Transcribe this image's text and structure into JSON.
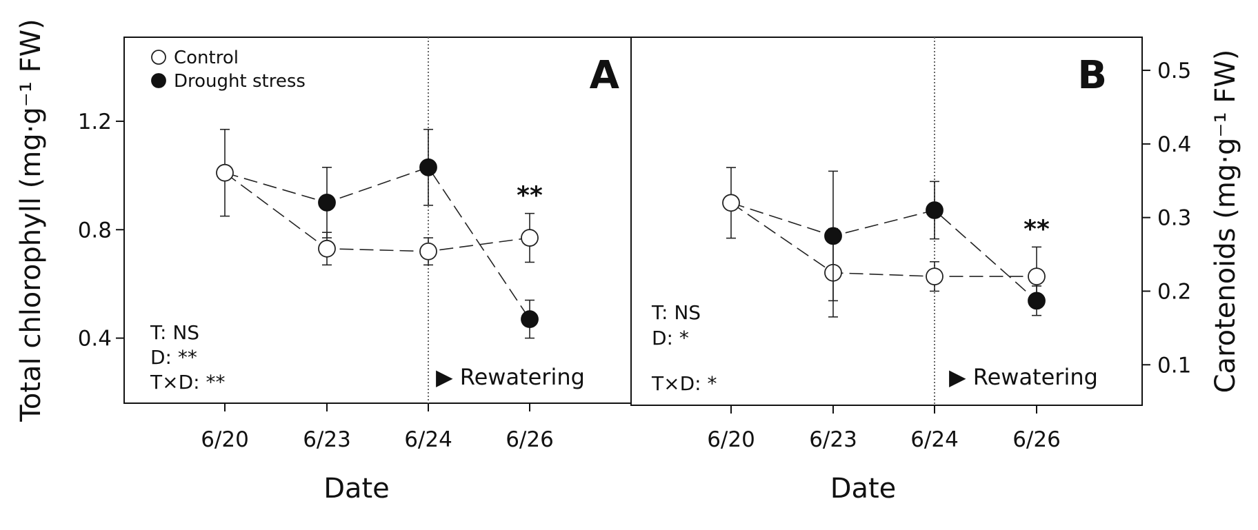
{
  "colors": {
    "axis": "#111111",
    "control_fill": "#ffffff",
    "drought_fill": "#111111",
    "line": "#222222"
  },
  "legend": [
    {
      "label": "Control",
      "marker": "open-circle"
    },
    {
      "label": "Drought stress",
      "marker": "filled-circle"
    }
  ],
  "rewatering_label": "▶ Rewatering",
  "chart_data": [
    {
      "panel": "A",
      "type": "line",
      "ylabel": "Total chlorophyll (mg·g⁻¹ FW)",
      "xlabel": "Date",
      "categories": [
        "6/20",
        "6/23",
        "6/24",
        "6/26"
      ],
      "ylim": [
        0.16,
        1.51
      ],
      "yticks": [
        0.4,
        0.8,
        1.2
      ],
      "ytick_labels": [
        "0.4",
        "0.8",
        "1.2"
      ],
      "y_axis_side": "left",
      "legend_position": "top-left",
      "rewatering_at": "6/24",
      "series": [
        {
          "name": "Control",
          "marker": "open-circle",
          "values": [
            1.01,
            0.73,
            0.72,
            0.77
          ],
          "errors": [
            0.16,
            0.06,
            0.05,
            0.09
          ]
        },
        {
          "name": "Drought stress",
          "marker": "filled-circle",
          "x": [
            "6/23",
            "6/24",
            "6/26"
          ],
          "values": [
            0.9,
            1.03,
            0.47
          ],
          "errors": [
            0.13,
            0.14,
            0.07
          ]
        }
      ],
      "significance": [
        {
          "x": "6/26",
          "label": "**"
        }
      ],
      "stats": [
        "T: NS",
        "D: **",
        "T×D: **"
      ]
    },
    {
      "panel": "B",
      "type": "line",
      "ylabel": "Carotenoids (mg·g⁻¹ FW)",
      "xlabel": "Date",
      "categories": [
        "6/20",
        "6/23",
        "6/24",
        "6/26"
      ],
      "ylim": [
        0.045,
        0.545
      ],
      "yticks": [
        0.1,
        0.2,
        0.3,
        0.4,
        0.5
      ],
      "ytick_labels": [
        "0.1",
        "0.2",
        "0.3",
        "0.4",
        "0.5"
      ],
      "y_axis_side": "right",
      "rewatering_at": "6/24",
      "series": [
        {
          "name": "Control",
          "marker": "open-circle",
          "values": [
            0.32,
            0.225,
            0.22,
            0.22
          ],
          "errors": [
            0.048,
            0.06,
            0.02,
            0.04
          ]
        },
        {
          "name": "Drought stress",
          "marker": "filled-circle",
          "x": [
            "6/23",
            "6/24",
            "6/26"
          ],
          "values": [
            0.275,
            0.31,
            0.187
          ],
          "errors": [
            0.088,
            0.039,
            0.02
          ]
        }
      ],
      "significance": [
        {
          "x": "6/26",
          "label": "**"
        }
      ],
      "stats": [
        "T: NS",
        "D: *",
        "T×D: *"
      ]
    }
  ]
}
